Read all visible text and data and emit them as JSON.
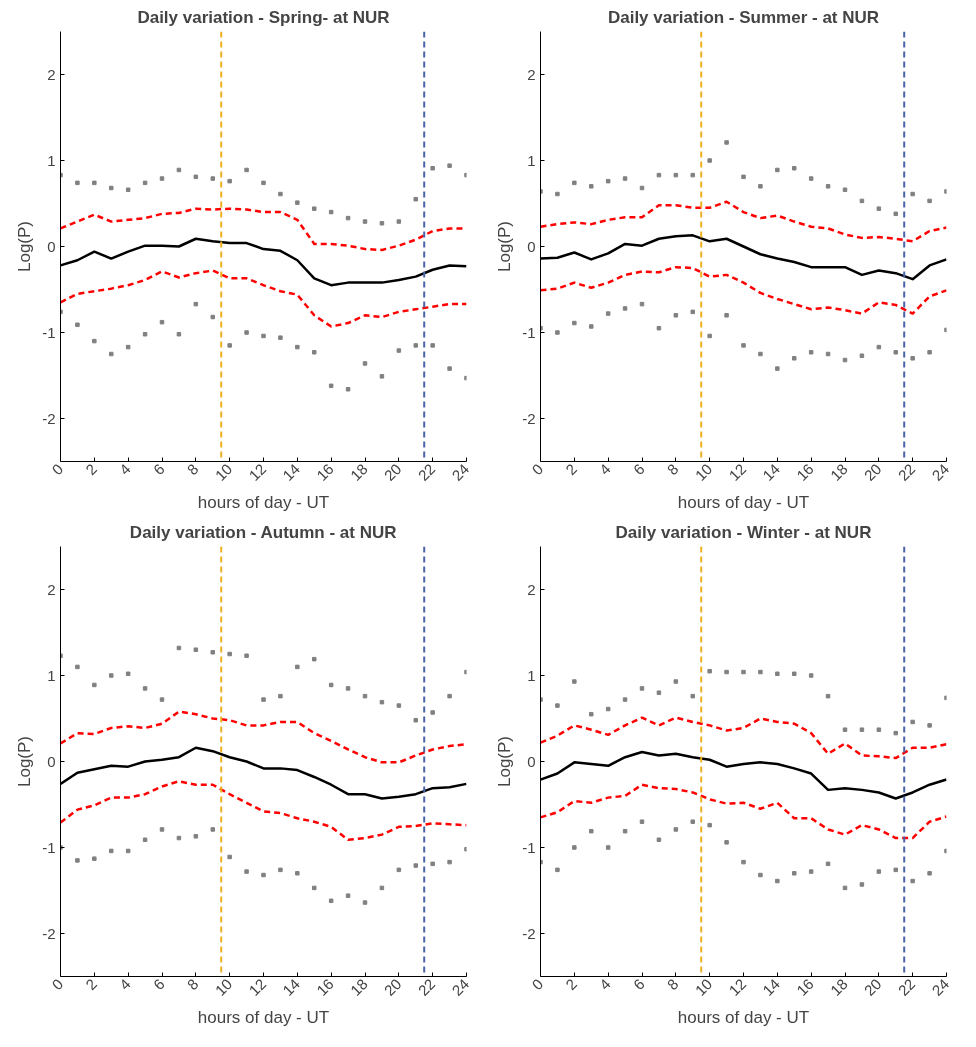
{
  "chart_data": [
    {
      "type": "line",
      "title": "Daily variation - Spring- at NUR",
      "xlabel": "hours of day - UT",
      "ylabel": "Log(P)",
      "xlim": [
        0,
        24
      ],
      "ylim": [
        -2.5,
        2.5
      ],
      "xticks": [
        0,
        2,
        4,
        6,
        8,
        10,
        12,
        14,
        16,
        18,
        20,
        22,
        24
      ],
      "yticks": [
        -2,
        -1,
        0,
        1,
        2
      ],
      "grid": false,
      "x": [
        0,
        1,
        2,
        3,
        4,
        5,
        6,
        7,
        8,
        9,
        10,
        11,
        12,
        13,
        14,
        15,
        16,
        17,
        18,
        19,
        20,
        21,
        22,
        23,
        24
      ],
      "ref_lines": [
        {
          "axis": "x",
          "value": 9.5,
          "color": "#edb120",
          "line_style": "dashed"
        },
        {
          "axis": "x",
          "value": 21.5,
          "color": "#4a62a8",
          "line_style": "dashed"
        }
      ],
      "series": [
        {
          "type": "scatter",
          "marker": "square",
          "color": "#808080",
          "values": [
            0.83,
            0.74,
            0.74,
            0.68,
            0.66,
            0.74,
            0.79,
            0.89,
            0.81,
            0.79,
            0.76,
            0.89,
            0.74,
            0.61,
            0.51,
            0.44,
            0.4,
            0.33,
            0.29,
            0.27,
            0.29,
            0.55,
            0.91,
            0.94,
            0.83
          ]
        },
        {
          "type": "scatter",
          "marker": "square",
          "color": "#808080",
          "values": [
            -0.76,
            -0.91,
            -1.1,
            -1.25,
            -1.17,
            -1.02,
            -0.88,
            -1.02,
            -0.67,
            -0.82,
            -1.15,
            -1.0,
            -1.04,
            -1.06,
            -1.17,
            -1.23,
            -1.62,
            -1.66,
            -1.36,
            -1.51,
            -1.21,
            -1.15,
            -1.15,
            -1.42,
            -1.53
          ]
        },
        {
          "type": "line",
          "line_style": "dashed",
          "color": "#ff0000",
          "values": [
            0.21,
            0.29,
            0.37,
            0.29,
            0.31,
            0.33,
            0.38,
            0.39,
            0.44,
            0.43,
            0.44,
            0.43,
            0.4,
            0.4,
            0.31,
            0.03,
            0.03,
            0.01,
            -0.03,
            -0.04,
            0.01,
            0.08,
            0.18,
            0.21,
            0.21
          ]
        },
        {
          "type": "line",
          "line_style": "dashed",
          "color": "#ff0000",
          "values": [
            -0.65,
            -0.55,
            -0.52,
            -0.49,
            -0.45,
            -0.39,
            -0.29,
            -0.36,
            -0.31,
            -0.28,
            -0.37,
            -0.37,
            -0.45,
            -0.52,
            -0.56,
            -0.8,
            -0.93,
            -0.89,
            -0.8,
            -0.82,
            -0.76,
            -0.73,
            -0.7,
            -0.67,
            -0.67
          ]
        },
        {
          "type": "line",
          "line_style": "solid",
          "color": "#000000",
          "values": [
            -0.22,
            -0.16,
            -0.06,
            -0.14,
            -0.06,
            0.01,
            0.01,
            0.0,
            0.09,
            0.06,
            0.04,
            0.04,
            -0.03,
            -0.05,
            -0.16,
            -0.37,
            -0.45,
            -0.42,
            -0.42,
            -0.42,
            -0.39,
            -0.35,
            -0.27,
            -0.22,
            -0.23
          ]
        }
      ]
    },
    {
      "type": "line",
      "title": "Daily variation - Summer - at NUR",
      "xlabel": "hours of day - UT",
      "ylabel": "Log(P)",
      "xlim": [
        0,
        24
      ],
      "ylim": [
        -2.5,
        2.5
      ],
      "xticks": [
        0,
        2,
        4,
        6,
        8,
        10,
        12,
        14,
        16,
        18,
        20,
        22,
        24
      ],
      "yticks": [
        -2,
        -1,
        0,
        1,
        2
      ],
      "grid": false,
      "x": [
        0,
        1,
        2,
        3,
        4,
        5,
        6,
        7,
        8,
        9,
        10,
        11,
        12,
        13,
        14,
        15,
        16,
        17,
        18,
        19,
        20,
        21,
        22,
        23,
        24
      ],
      "ref_lines": [
        {
          "axis": "x",
          "value": 9.5,
          "color": "#edb120",
          "line_style": "dashed"
        },
        {
          "axis": "x",
          "value": 21.5,
          "color": "#4a62a8",
          "line_style": "dashed"
        }
      ],
      "series": [
        {
          "type": "scatter",
          "marker": "square",
          "color": "#808080",
          "values": [
            0.64,
            0.61,
            0.74,
            0.7,
            0.76,
            0.79,
            0.68,
            0.83,
            0.83,
            0.83,
            1.0,
            1.21,
            0.81,
            0.7,
            0.89,
            0.91,
            0.79,
            0.7,
            0.66,
            0.53,
            0.44,
            0.38,
            0.61,
            0.53,
            0.64
          ]
        },
        {
          "type": "scatter",
          "marker": "square",
          "color": "#808080",
          "values": [
            -0.95,
            -1.0,
            -0.89,
            -0.93,
            -0.78,
            -0.72,
            -0.67,
            -0.95,
            -0.8,
            -0.76,
            -1.04,
            -0.8,
            -1.15,
            -1.25,
            -1.42,
            -1.3,
            -1.23,
            -1.25,
            -1.32,
            -1.27,
            -1.17,
            -1.23,
            -1.3,
            -1.23,
            -0.97
          ]
        },
        {
          "type": "line",
          "line_style": "dashed",
          "color": "#ff0000",
          "values": [
            0.23,
            0.26,
            0.28,
            0.26,
            0.31,
            0.34,
            0.34,
            0.48,
            0.48,
            0.45,
            0.45,
            0.52,
            0.4,
            0.33,
            0.36,
            0.29,
            0.23,
            0.21,
            0.14,
            0.1,
            0.11,
            0.09,
            0.06,
            0.18,
            0.22
          ]
        },
        {
          "type": "line",
          "line_style": "dashed",
          "color": "#ff0000",
          "values": [
            -0.51,
            -0.49,
            -0.42,
            -0.48,
            -0.42,
            -0.33,
            -0.29,
            -0.3,
            -0.24,
            -0.25,
            -0.35,
            -0.33,
            -0.42,
            -0.54,
            -0.61,
            -0.67,
            -0.73,
            -0.71,
            -0.74,
            -0.78,
            -0.65,
            -0.68,
            -0.78,
            -0.58,
            -0.51
          ]
        },
        {
          "type": "line",
          "line_style": "solid",
          "color": "#000000",
          "values": [
            -0.14,
            -0.13,
            -0.07,
            -0.15,
            -0.08,
            0.03,
            0.01,
            0.09,
            0.12,
            0.13,
            0.06,
            0.09,
            0.0,
            -0.09,
            -0.14,
            -0.18,
            -0.24,
            -0.24,
            -0.24,
            -0.33,
            -0.28,
            -0.31,
            -0.38,
            -0.22,
            -0.15
          ]
        }
      ]
    },
    {
      "type": "line",
      "title": "Daily variation - Autumn - at NUR",
      "xlabel": "hours of day - UT",
      "ylabel": "Log(P)",
      "xlim": [
        0,
        24
      ],
      "ylim": [
        -2.5,
        2.5
      ],
      "xticks": [
        0,
        2,
        4,
        6,
        8,
        10,
        12,
        14,
        16,
        18,
        20,
        22,
        24
      ],
      "yticks": [
        -2,
        -1,
        0,
        1,
        2
      ],
      "grid": false,
      "x": [
        0,
        1,
        2,
        3,
        4,
        5,
        6,
        7,
        8,
        9,
        10,
        11,
        12,
        13,
        14,
        15,
        16,
        17,
        18,
        19,
        20,
        21,
        22,
        23,
        24
      ],
      "ref_lines": [
        {
          "axis": "x",
          "value": 9.5,
          "color": "#edb120",
          "line_style": "dashed"
        },
        {
          "axis": "x",
          "value": 21.5,
          "color": "#4a62a8",
          "line_style": "dashed"
        }
      ],
      "series": [
        {
          "type": "scatter",
          "marker": "square",
          "color": "#808080",
          "values": [
            1.23,
            1.1,
            0.89,
            1.0,
            1.02,
            0.85,
            0.72,
            1.32,
            1.3,
            1.27,
            1.25,
            1.23,
            0.72,
            0.76,
            1.1,
            1.19,
            0.89,
            0.85,
            0.76,
            0.69,
            0.65,
            0.48,
            0.57,
            0.76,
            1.04
          ]
        },
        {
          "type": "scatter",
          "marker": "square",
          "color": "#808080",
          "values": [
            -1.0,
            -1.15,
            -1.13,
            -1.04,
            -1.04,
            -0.91,
            -0.79,
            -0.89,
            -0.87,
            -0.79,
            -1.11,
            -1.28,
            -1.32,
            -1.26,
            -1.3,
            -1.47,
            -1.62,
            -1.56,
            -1.64,
            -1.47,
            -1.26,
            -1.21,
            -1.19,
            -1.17,
            -1.02
          ]
        },
        {
          "type": "line",
          "line_style": "dashed",
          "color": "#ff0000",
          "values": [
            0.21,
            0.33,
            0.32,
            0.39,
            0.41,
            0.39,
            0.44,
            0.58,
            0.55,
            0.5,
            0.48,
            0.42,
            0.42,
            0.46,
            0.46,
            0.33,
            0.24,
            0.14,
            0.05,
            -0.01,
            -0.01,
            0.07,
            0.14,
            0.18,
            0.2
          ]
        },
        {
          "type": "line",
          "line_style": "dashed",
          "color": "#ff0000",
          "values": [
            -0.71,
            -0.56,
            -0.51,
            -0.42,
            -0.42,
            -0.38,
            -0.29,
            -0.23,
            -0.27,
            -0.27,
            -0.38,
            -0.48,
            -0.58,
            -0.6,
            -0.66,
            -0.7,
            -0.76,
            -0.91,
            -0.89,
            -0.85,
            -0.76,
            -0.75,
            -0.72,
            -0.73,
            -0.74
          ]
        },
        {
          "type": "line",
          "line_style": "solid",
          "color": "#000000",
          "values": [
            -0.26,
            -0.13,
            -0.09,
            -0.05,
            -0.06,
            0.0,
            0.02,
            0.05,
            0.16,
            0.12,
            0.05,
            0.0,
            -0.08,
            -0.08,
            -0.1,
            -0.18,
            -0.27,
            -0.38,
            -0.38,
            -0.43,
            -0.41,
            -0.38,
            -0.31,
            -0.3,
            -0.26
          ]
        }
      ]
    },
    {
      "type": "line",
      "title": "Daily variation - Winter - at NUR",
      "xlabel": "hours of day - UT",
      "ylabel": "Log(P)",
      "xlim": [
        0,
        24
      ],
      "ylim": [
        -2.5,
        2.5
      ],
      "xticks": [
        0,
        2,
        4,
        6,
        8,
        10,
        12,
        14,
        16,
        18,
        20,
        22,
        24
      ],
      "yticks": [
        -2,
        -1,
        0,
        1,
        2
      ],
      "grid": false,
      "x": [
        0,
        1,
        2,
        3,
        4,
        5,
        6,
        7,
        8,
        9,
        10,
        11,
        12,
        13,
        14,
        15,
        16,
        17,
        18,
        19,
        20,
        21,
        22,
        23,
        24
      ],
      "ref_lines": [
        {
          "axis": "x",
          "value": 9.5,
          "color": "#edb120",
          "line_style": "dashed"
        },
        {
          "axis": "x",
          "value": 21.5,
          "color": "#4a62a8",
          "line_style": "dashed"
        }
      ],
      "series": [
        {
          "type": "scatter",
          "marker": "square",
          "color": "#808080",
          "values": [
            0.72,
            0.65,
            0.93,
            0.55,
            0.61,
            0.72,
            0.85,
            0.8,
            0.93,
            0.76,
            1.05,
            1.04,
            1.04,
            1.04,
            1.02,
            1.02,
            1.0,
            0.76,
            0.37,
            0.37,
            0.37,
            0.33,
            0.46,
            0.42,
            0.74
          ]
        },
        {
          "type": "scatter",
          "marker": "square",
          "color": "#808080",
          "values": [
            -1.17,
            -1.26,
            -1.0,
            -0.81,
            -1.0,
            -0.81,
            -0.7,
            -0.91,
            -0.79,
            -0.7,
            -0.74,
            -0.94,
            -1.17,
            -1.32,
            -1.39,
            -1.3,
            -1.28,
            -1.19,
            -1.47,
            -1.43,
            -1.28,
            -1.26,
            -1.39,
            -1.3,
            -1.04
          ]
        },
        {
          "type": "line",
          "line_style": "dashed",
          "color": "#ff0000",
          "values": [
            0.22,
            0.3,
            0.42,
            0.37,
            0.31,
            0.42,
            0.51,
            0.42,
            0.51,
            0.46,
            0.42,
            0.36,
            0.39,
            0.5,
            0.46,
            0.44,
            0.33,
            0.09,
            0.21,
            0.07,
            0.06,
            0.04,
            0.16,
            0.16,
            0.2
          ]
        },
        {
          "type": "line",
          "line_style": "dashed",
          "color": "#ff0000",
          "values": [
            -0.65,
            -0.59,
            -0.46,
            -0.48,
            -0.42,
            -0.4,
            -0.27,
            -0.31,
            -0.32,
            -0.36,
            -0.44,
            -0.49,
            -0.48,
            -0.55,
            -0.48,
            -0.66,
            -0.66,
            -0.79,
            -0.85,
            -0.74,
            -0.79,
            -0.89,
            -0.89,
            -0.7,
            -0.64
          ]
        },
        {
          "type": "line",
          "line_style": "solid",
          "color": "#000000",
          "values": [
            -0.21,
            -0.14,
            -0.01,
            -0.03,
            -0.05,
            0.05,
            0.11,
            0.07,
            0.09,
            0.05,
            0.02,
            -0.06,
            -0.03,
            -0.01,
            -0.03,
            -0.08,
            -0.14,
            -0.33,
            -0.31,
            -0.33,
            -0.36,
            -0.43,
            -0.36,
            -0.27,
            -0.21
          ]
        }
      ]
    }
  ]
}
